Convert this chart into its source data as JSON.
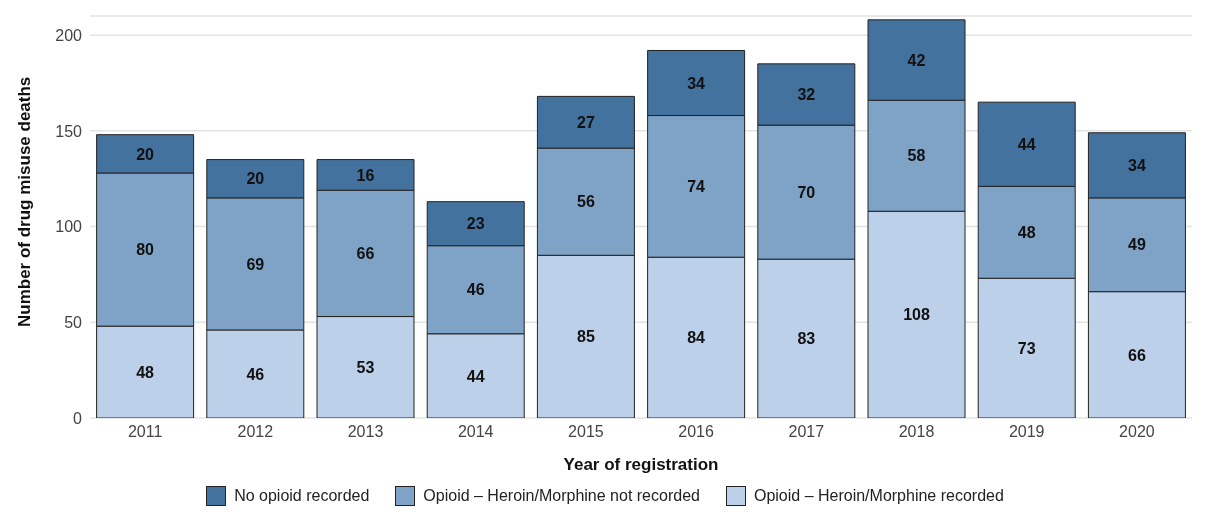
{
  "chart_data": {
    "type": "bar",
    "stacked": true,
    "xlabel": "Year of registration",
    "ylabel": "Number of drug misuse deaths",
    "categories": [
      "2011",
      "2012",
      "2013",
      "2014",
      "2015",
      "2016",
      "2017",
      "2018",
      "2019",
      "2020"
    ],
    "series": [
      {
        "name": "Opioid – Heroin/Morphine recorded",
        "color": "#bdd0e9",
        "values": [
          48,
          46,
          53,
          44,
          85,
          84,
          83,
          108,
          73,
          66
        ]
      },
      {
        "name": "Opioid – Heroin/Morphine not recorded",
        "color": "#7fa3c6",
        "values": [
          80,
          69,
          66,
          46,
          56,
          74,
          70,
          58,
          48,
          49
        ]
      },
      {
        "name": "No opioid recorded",
        "color": "#44729e",
        "values": [
          20,
          20,
          16,
          23,
          27,
          34,
          32,
          42,
          44,
          34
        ]
      }
    ],
    "ylim": [
      0,
      210
    ],
    "yticks": [
      0,
      50,
      100,
      150,
      200
    ],
    "grid": "y",
    "legend": "bottom",
    "data_labels": true
  }
}
